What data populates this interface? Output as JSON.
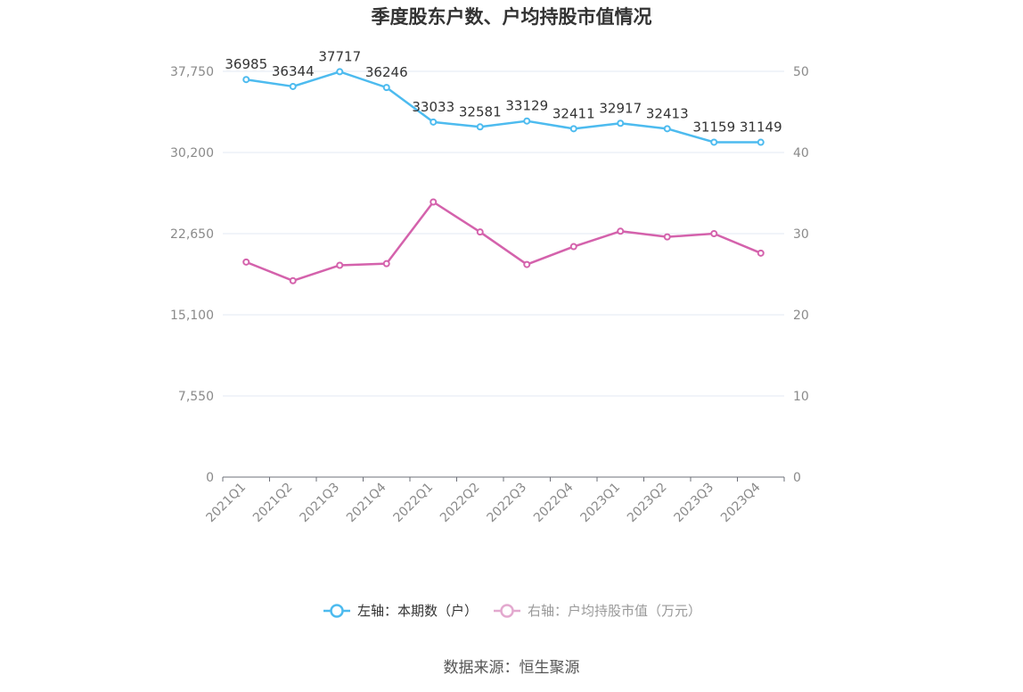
{
  "chart_data": {
    "type": "line",
    "title": "季度股东户数、户均持股市值情况",
    "categories": [
      "2021Q1",
      "2021Q2",
      "2021Q3",
      "2021Q4",
      "2022Q1",
      "2022Q2",
      "2022Q3",
      "2022Q4",
      "2023Q1",
      "2023Q2",
      "2023Q3",
      "2023Q4"
    ],
    "left_axis": {
      "ticks": [
        "0",
        "7,550",
        "15,100",
        "22,650",
        "30,200",
        "37,750"
      ],
      "ylim": [
        0,
        37750
      ]
    },
    "right_axis": {
      "ticks": [
        "0",
        "10",
        "20",
        "30",
        "40",
        "50"
      ],
      "ylim": [
        0,
        50
      ]
    },
    "series": [
      {
        "name": "左轴：本期数（户）",
        "axis": "left",
        "color": "#4dbbef",
        "values": [
          36985,
          36344,
          37717,
          36246,
          33033,
          32581,
          33129,
          32411,
          32917,
          32413,
          31159,
          31149
        ],
        "data_labels": [
          "36985",
          "36344",
          "37717",
          "36246",
          "33033",
          "32581",
          "33129",
          "32411",
          "32917",
          "32413",
          "31159",
          "31149"
        ]
      },
      {
        "name": "右轴：户均持股市值（万元）",
        "axis": "right",
        "color": "#d462ac",
        "values": [
          26.5,
          24.2,
          26.1,
          26.3,
          33.9,
          30.2,
          26.2,
          28.4,
          30.3,
          29.6,
          30.0,
          27.6
        ]
      }
    ],
    "grid": true,
    "legend_position": "bottom"
  },
  "source_text": "数据来源：恒生聚源"
}
